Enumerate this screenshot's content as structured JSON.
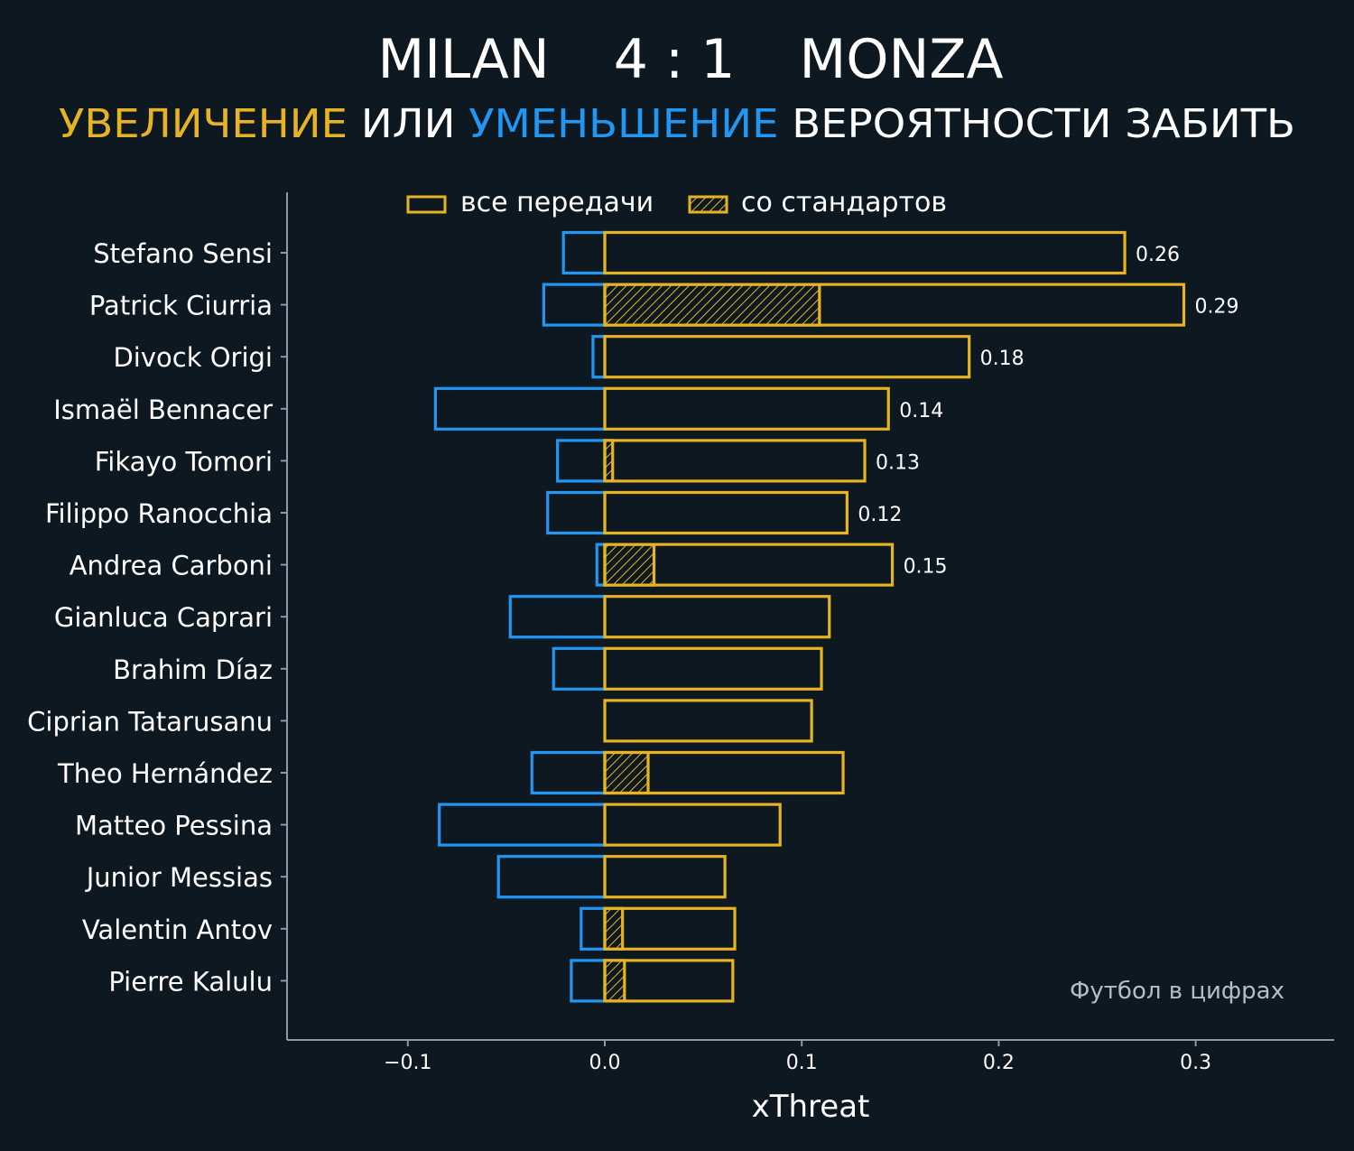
{
  "colors": {
    "background": "#0e1821",
    "increase": "#e6b325",
    "decrease": "#2196f3",
    "text": "#ffffff",
    "axis": "#8a9aa6",
    "watermark": "#b7bcc1"
  },
  "header": {
    "home": "MILAN",
    "score": "4 : 1",
    "away": "MONZA",
    "subtitle_increase": "УВЕЛИЧЕНИЕ",
    "subtitle_or": " ИЛИ ",
    "subtitle_decrease": "УМЕНЬШЕНИЕ",
    "subtitle_rest": " ВЕРОЯТНОСТИ ЗАБИТЬ"
  },
  "legend": {
    "all_passes": "все передачи",
    "set_pieces": "со стандартов"
  },
  "watermark": "Футбол в цифрах",
  "chart_data": {
    "type": "bar",
    "orientation": "horizontal",
    "xlabel": "xThreat",
    "xlim": [
      -0.16,
      0.35
    ],
    "xticks": [
      -0.1,
      0.0,
      0.1,
      0.2,
      0.3
    ],
    "xtick_labels": [
      "−0.1",
      "0.0",
      "0.1",
      "0.2",
      "0.3"
    ],
    "categories": [
      "Stefano Sensi",
      "Patrick Ciurria",
      "Divock Origi",
      "Ismaël Bennacer",
      "Fikayo Tomori",
      "Filippo Ranocchia",
      "Andrea Carboni",
      "Gianluca Caprari",
      "Brahim Díaz",
      "Ciprian Tatarusanu",
      "Theo Hernández",
      "Matteo Pessina",
      "Junior Messias",
      "Valentin Antov",
      "Pierre Kalulu"
    ],
    "series": [
      {
        "name": "increase (all passes)",
        "values": [
          0.264,
          0.294,
          0.185,
          0.144,
          0.132,
          0.123,
          0.146,
          0.114,
          0.11,
          0.105,
          0.121,
          0.089,
          0.061,
          0.066,
          0.065
        ]
      },
      {
        "name": "increase (set pieces)",
        "values": [
          0,
          0.109,
          0,
          0,
          0.004,
          0,
          0.025,
          0,
          0,
          0,
          0.022,
          0,
          0,
          0.009,
          0.01
        ]
      },
      {
        "name": "decrease",
        "values": [
          -0.021,
          -0.031,
          -0.006,
          -0.086,
          -0.024,
          -0.029,
          -0.004,
          -0.048,
          -0.026,
          0,
          -0.037,
          -0.084,
          -0.054,
          -0.012,
          -0.017
        ]
      }
    ],
    "net_labels": [
      "0.26",
      "0.29",
      "0.18",
      "0.14",
      "0.13",
      "0.12",
      "0.15",
      null,
      null,
      null,
      null,
      null,
      null,
      null,
      null
    ]
  }
}
